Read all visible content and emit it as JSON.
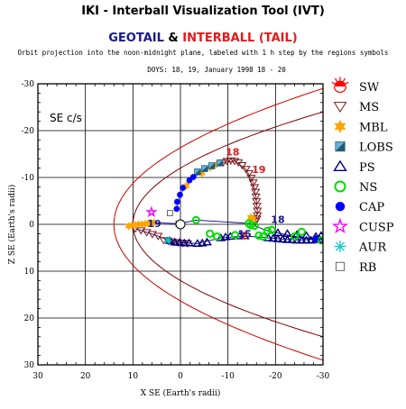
{
  "header": {
    "tool_title": "IKI - Interball Visualization Tool (IVT)",
    "mission_a": "GEOTAIL",
    "amp": " & ",
    "mission_b": "INTERBALL (TAIL)",
    "caption": "Orbit projection into the noon-midnight plane, labeled with 1 h step by the regions symbols",
    "doys": "DOYS: 18, 19,   January 1998 18 - 20"
  },
  "panel_label": "SE c/s",
  "colors": {
    "mission_a": "#1a1a8c",
    "mission_b": "#e11a1a",
    "geotail_track": "#00008b",
    "interball_track": "#6a0a2a",
    "sw": "#ff0000",
    "ms": "#7a1a1a",
    "mbl": "#ffa500",
    "lobs": "#3a8ab0",
    "ps": "#000080",
    "ns": "#00dd00",
    "cap": "#0000ff",
    "cusp": "#ff00ff",
    "aur": "#00cccc",
    "rb": "#666666",
    "bow_shock": "#cc0000",
    "magnetopause": "#800000"
  },
  "legend": [
    {
      "key": "sw",
      "label": "SW",
      "icon": "sun-half-icon"
    },
    {
      "key": "ms",
      "label": "MS",
      "icon": "down-triangle-icon"
    },
    {
      "key": "mbl",
      "label": "MBL",
      "icon": "star-of-david-icon"
    },
    {
      "key": "lobs",
      "label": "LOBS",
      "icon": "split-square-icon"
    },
    {
      "key": "ps",
      "label": "PS",
      "icon": "triangle-icon"
    },
    {
      "key": "ns",
      "label": "NS",
      "icon": "ring-icon"
    },
    {
      "key": "cap",
      "label": "CAP",
      "icon": "filled-circle-icon"
    },
    {
      "key": "cusp",
      "label": "CUSP",
      "icon": "pentagram-icon"
    },
    {
      "key": "aur",
      "label": "AUR",
      "icon": "asterisk-icon"
    },
    {
      "key": "rb",
      "label": "RB",
      "icon": "square-icon"
    }
  ],
  "chart_data": {
    "type": "scatter",
    "xlabel": "X SE (Earth's radii)",
    "ylabel": "Z SE (Earth's radii)",
    "xlim": [
      30,
      -30
    ],
    "ylim": [
      -30,
      30
    ],
    "xticks": [
      30,
      20,
      10,
      0,
      -10,
      -20,
      -30
    ],
    "xtick_labels": [
      "30",
      "20",
      "10",
      "0",
      "-10",
      "-20",
      "-30"
    ],
    "yticks": [
      -30,
      -20,
      -10,
      0,
      10,
      20,
      30
    ],
    "ytick_labels": [
      "-30",
      "-20",
      "-10",
      "0",
      "10",
      "20",
      "30"
    ],
    "grid": true,
    "legend_position": "right",
    "boundaries": [
      {
        "name": "bow_shock",
        "nose_x": 14,
        "width_at_x_minus30": 29
      },
      {
        "name": "magnetopause",
        "nose_x": 10,
        "width_at_x_minus30": 24
      }
    ],
    "hour_labels": [
      {
        "text": "18",
        "x": -11,
        "z": -14.7,
        "mission": "interball"
      },
      {
        "text": "19",
        "x": -16.5,
        "z": -11,
        "mission": "interball"
      },
      {
        "text": "2",
        "x": -13.5,
        "z": 3.2,
        "mission": "interball"
      },
      {
        "text": "19",
        "x": 5.5,
        "z": 0.6,
        "mission": "geotail"
      },
      {
        "text": "18",
        "x": -20.5,
        "z": -0.3,
        "mission": "geotail"
      },
      {
        "text": "15",
        "x": -13.5,
        "z": 2.8,
        "mission": "geotail"
      }
    ],
    "series": [
      {
        "region": "ms",
        "points": [
          [
            -9,
            -13.2
          ],
          [
            -9.8,
            -13.5
          ],
          [
            -10.6,
            -13.6
          ],
          [
            -11.4,
            -13.5
          ],
          [
            -12.2,
            -13.2
          ],
          [
            -13,
            -12.6
          ],
          [
            -13.8,
            -11.8
          ],
          [
            -14.4,
            -10.9
          ],
          [
            -14.9,
            -9.9
          ],
          [
            -15.3,
            -8.9
          ],
          [
            -15.6,
            -7.9
          ],
          [
            -15.8,
            -6.9
          ],
          [
            -15.9,
            -5.9
          ],
          [
            -16,
            -4.9
          ],
          [
            -16.1,
            -3.9
          ],
          [
            -16.2,
            -2.9
          ],
          [
            -16.2,
            -1.9
          ],
          [
            -16.1,
            -1.2
          ],
          [
            -15.8,
            -0.6
          ],
          [
            9.5,
            0.9
          ],
          [
            8.3,
            1.3
          ],
          [
            7.1,
            1.7
          ],
          [
            5.9,
            2.1
          ],
          [
            4.7,
            2.5
          ],
          [
            3.5,
            3.4
          ],
          [
            2.5,
            3.6
          ],
          [
            1.5,
            3.8
          ],
          [
            0.5,
            3.9
          ],
          [
            -0.5,
            4
          ],
          [
            -1.5,
            4.1
          ]
        ]
      },
      {
        "region": "mbl",
        "points": [
          [
            10.9,
            0.4
          ],
          [
            10.2,
            0.2
          ],
          [
            9.5,
            0.1
          ],
          [
            8.8,
            0.0
          ],
          [
            8.1,
            0.0
          ],
          [
            7.4,
            -0.1
          ],
          [
            6.8,
            -0.2
          ],
          [
            6.2,
            -0.3
          ],
          [
            5.6,
            -0.4
          ],
          [
            -1.2,
            -8.2
          ],
          [
            -4.5,
            -10.9
          ],
          [
            -6.3,
            -12.1
          ],
          [
            -7.6,
            -12.8
          ],
          [
            -14.8,
            -1.5
          ],
          [
            -15.3,
            -1.2
          ]
        ]
      },
      {
        "region": "lobs",
        "points": [
          [
            -3.6,
            -11.2
          ],
          [
            -5.1,
            -11.9
          ],
          [
            -6.6,
            -12.5
          ],
          [
            -8.3,
            -13.1
          ]
        ]
      },
      {
        "region": "ps",
        "points": [
          [
            2.2,
            3.5
          ],
          [
            1.2,
            3.8
          ],
          [
            0.2,
            3.9
          ],
          [
            -0.8,
            4
          ],
          [
            -1.8,
            4
          ],
          [
            -3.6,
            4.1
          ],
          [
            -4.6,
            4.0
          ],
          [
            -5.6,
            3.8
          ],
          [
            -8.5,
            2.9
          ],
          [
            -9.5,
            2.7
          ],
          [
            -10.5,
            2.6
          ],
          [
            -12.5,
            2.5
          ],
          [
            -13.5,
            2.5
          ],
          [
            -18.5,
            2.9
          ],
          [
            -19.5,
            3.0
          ],
          [
            -20.5,
            3.1
          ],
          [
            -21.5,
            3.2
          ],
          [
            -22.5,
            3.3
          ],
          [
            -23.5,
            3.3
          ],
          [
            -24.5,
            3.4
          ],
          [
            -25.5,
            3.4
          ],
          [
            -26.5,
            3.4
          ],
          [
            -27.5,
            3.4
          ],
          [
            -28.5,
            3.3
          ],
          [
            -29.3,
            3.2
          ],
          [
            -20.5,
            1.8
          ],
          [
            -22.5,
            2.0
          ],
          [
            -24.5,
            2.2
          ],
          [
            -26.5,
            2.4
          ],
          [
            -28.5,
            2.6
          ],
          [
            -29.6,
            2.4
          ]
        ]
      },
      {
        "region": "ns",
        "points": [
          [
            -3.3,
            -0.9
          ],
          [
            -6.2,
            2.0
          ],
          [
            -7.7,
            2.6
          ],
          [
            -11.5,
            2.3
          ],
          [
            -14.4,
            -0.2
          ],
          [
            -14.8,
            0.2
          ],
          [
            -15.6,
            0.3
          ],
          [
            -16.5,
            2.4
          ],
          [
            -17.4,
            2.6
          ],
          [
            -18.3,
            1.4
          ],
          [
            -19.2,
            1.2
          ],
          [
            -24,
            2.6
          ],
          [
            -25.5,
            1.6
          ],
          [
            -29.6,
            3.4
          ]
        ]
      },
      {
        "region": "cap",
        "points": [
          [
            0.8,
            -3.3
          ],
          [
            0.7,
            -4.8
          ],
          [
            0.1,
            -6.3
          ],
          [
            -0.5,
            -7.8
          ],
          [
            -1.9,
            -9.4
          ],
          [
            -2.7,
            -10.1
          ],
          [
            -28.4,
            3.0
          ]
        ]
      },
      {
        "region": "cusp",
        "points": [
          [
            6.1,
            -2.6
          ]
        ]
      },
      {
        "region": "aur",
        "points": [
          [
            2.6,
            3.4
          ]
        ]
      },
      {
        "region": "rb",
        "points": [
          [
            0.4,
            -0.1
          ],
          [
            2.2,
            -2.4
          ]
        ]
      }
    ]
  }
}
